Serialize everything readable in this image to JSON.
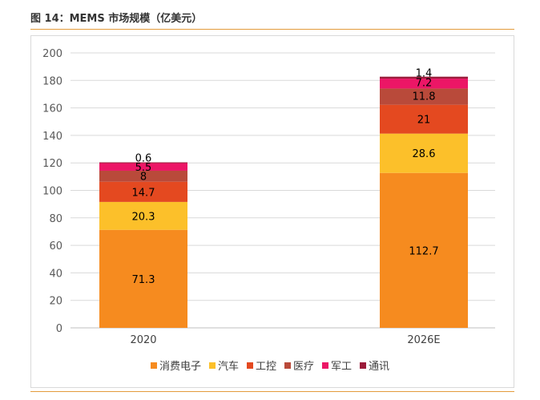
{
  "figure": {
    "title": "图 14：MEMS 市场规模（亿美元）"
  },
  "chart_data": {
    "type": "bar",
    "stacked": true,
    "categories": [
      "2020",
      "2026E"
    ],
    "ylim": [
      0,
      200
    ],
    "yticks": [
      0,
      20,
      40,
      60,
      80,
      100,
      120,
      140,
      160,
      180,
      200
    ],
    "grid": true,
    "legend_position": "bottom",
    "series": [
      {
        "name": "消费电子",
        "values": [
          71.3,
          112.7
        ],
        "color": "#f68b1f"
      },
      {
        "name": "汽车",
        "values": [
          20.3,
          28.6
        ],
        "color": "#fcc02a"
      },
      {
        "name": "工控",
        "values": [
          14.7,
          21
        ],
        "color": "#e44920"
      },
      {
        "name": "医疗",
        "values": [
          8,
          11.8
        ],
        "color": "#b94a3a"
      },
      {
        "name": "军工",
        "values": [
          5.5,
          7.2
        ],
        "color": "#ec1666"
      },
      {
        "name": "通讯",
        "values": [
          0.6,
          1.4
        ],
        "color": "#9b1b3a"
      }
    ]
  }
}
